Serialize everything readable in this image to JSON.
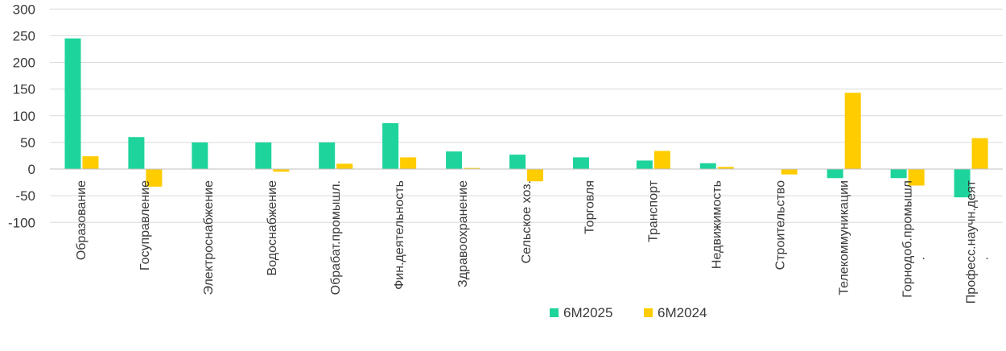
{
  "chart_data": {
    "type": "bar",
    "categories": [
      "Образование",
      "Госуправление",
      "Электроснабжение",
      "Водоснабжение",
      "Обрабат.промышл.",
      "Фин.деятельность",
      "Здравоохранение",
      "Сельское хоз.",
      "Торговля",
      "Транспорт",
      "Недвижимость",
      "Строительство",
      "Телекоммуникации",
      "Горнодоб.промышл",
      "Професс.научн.деят"
    ],
    "category_suffix_marks": [
      "",
      "",
      "",
      "",
      "",
      "",
      "",
      "",
      "",
      "",
      "",
      "",
      "",
      ".",
      "."
    ],
    "series": [
      {
        "name": "6M2025",
        "color": "#1ED49C",
        "values": [
          245,
          60,
          50,
          50,
          50,
          86,
          33,
          27,
          22,
          16,
          11,
          0,
          -17,
          -17,
          -53
        ]
      },
      {
        "name": "6M2024",
        "color": "#FFCC00",
        "values": [
          24,
          -33,
          0,
          -5,
          10,
          22,
          2,
          -23,
          0,
          34,
          4,
          -10,
          143,
          -31,
          58
        ]
      }
    ],
    "yticks": [
      300,
      250,
      200,
      150,
      100,
      50,
      0,
      -50,
      -100
    ],
    "ylim": [
      -100,
      300
    ],
    "grid": true,
    "legend_position": "bottom-center",
    "title": "",
    "xlabel": "",
    "ylabel": ""
  }
}
